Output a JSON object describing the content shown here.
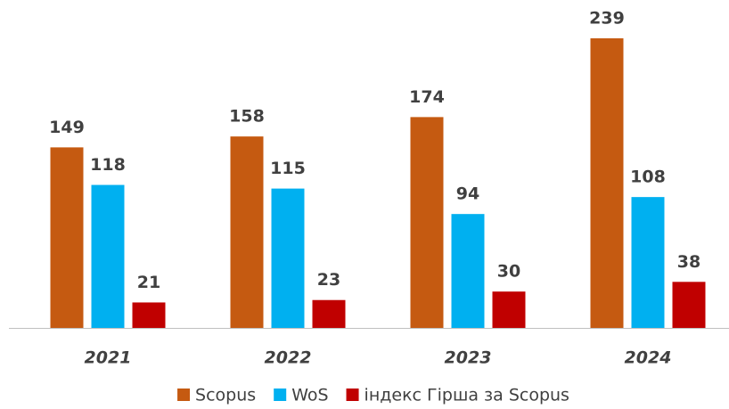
{
  "chart_data": {
    "type": "bar",
    "categories": [
      "2021",
      "2022",
      "2023",
      "2024"
    ],
    "series": [
      {
        "name": "Scopus",
        "color": "#c55a11",
        "values": [
          149,
          158,
          174,
          239
        ]
      },
      {
        "name": "WoS",
        "color": "#00b0f0",
        "values": [
          118,
          115,
          94,
          108
        ]
      },
      {
        "name": "індекс Гірша за Scopus",
        "color": "#c00000",
        "values": [
          21,
          23,
          30,
          38
        ]
      }
    ]
  }
}
